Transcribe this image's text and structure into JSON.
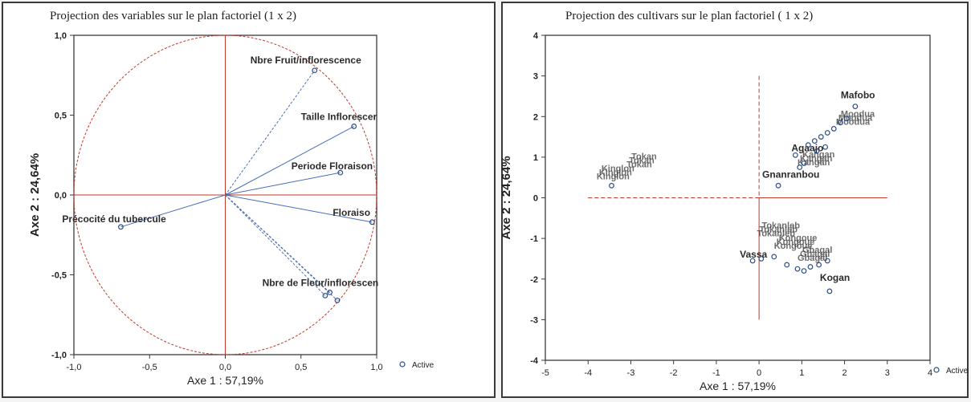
{
  "chart_data": [
    {
      "type": "scatter",
      "title": "Projection des variables sur le plan factoriel (1 x 2)",
      "xlabel": "Axe 1   : 57,19%",
      "ylabel": "Axe 2  : 24,64%",
      "xlim": [
        -1.0,
        1.0
      ],
      "ylim": [
        -1.0,
        1.0
      ],
      "xticks": [
        "-1,0",
        "-0,5",
        "0,0",
        "0,5",
        "1,0"
      ],
      "yticks": [
        "-1,0",
        "-0,5",
        "0,0",
        "0,5",
        "1,0"
      ],
      "legend": "Active",
      "legend_position": "right",
      "unit_circle": true,
      "points": [
        {
          "label": "Nbre Fruit/inflorescence",
          "x": 0.59,
          "y": 0.78
        },
        {
          "label": "Taille Inflorescer",
          "x": 0.85,
          "y": 0.43
        },
        {
          "label": "Periode Floraison",
          "x": 0.76,
          "y": 0.14
        },
        {
          "label": "Floraiso",
          "x": 0.97,
          "y": -0.17
        },
        {
          "label": "Précocité du tubercule",
          "x": -0.69,
          "y": -0.2
        },
        {
          "label": "Nbre de Fleur/inflorescen",
          "x": 0.69,
          "y": -0.61
        },
        {
          "label": "",
          "x": 0.74,
          "y": -0.66
        },
        {
          "label": "",
          "x": 0.66,
          "y": -0.63
        }
      ]
    },
    {
      "type": "scatter",
      "title": "Projection des cultivars sur le plan factoriel (  1 x   2)",
      "xlabel": "Axe 1 : 57,19%",
      "ylabel": "Axe 2 : 24,64%",
      "xlim": [
        -5,
        4
      ],
      "ylim": [
        -4,
        4
      ],
      "xticks": [
        "-5",
        "-4",
        "-3",
        "-2",
        "-1",
        "0",
        "1",
        "2",
        "3",
        "4"
      ],
      "yticks": [
        "-4",
        "-3",
        "-2",
        "-1",
        "0",
        "1",
        "2",
        "3",
        "4"
      ],
      "legend": "Active",
      "legend_position": "right",
      "points": [
        {
          "label": "Mafobo",
          "x": 2.25,
          "y": 2.25
        },
        {
          "label": "Gnanranbou",
          "x": 0.45,
          "y": 0.3
        },
        {
          "label": "Kogan",
          "x": 1.65,
          "y": -2.3
        },
        {
          "label": "Vassa",
          "x": -0.15,
          "y": -1.55
        },
        {
          "label": "Agaajo",
          "x": 0.85,
          "y": 1.05
        },
        {
          "label": "",
          "x": -3.45,
          "y": 0.3
        },
        {
          "label": "",
          "x": 2.05,
          "y": 1.95
        },
        {
          "label": "",
          "x": 1.9,
          "y": 1.85
        },
        {
          "label": "",
          "x": 1.75,
          "y": 1.7
        },
        {
          "label": "",
          "x": 1.6,
          "y": 1.6
        },
        {
          "label": "",
          "x": 1.45,
          "y": 1.5
        },
        {
          "label": "",
          "x": 1.3,
          "y": 1.4
        },
        {
          "label": "",
          "x": 1.15,
          "y": 1.3
        },
        {
          "label": "",
          "x": 1.05,
          "y": 0.85
        },
        {
          "label": "",
          "x": 0.95,
          "y": 0.75
        },
        {
          "label": "",
          "x": 1.35,
          "y": 1.15
        },
        {
          "label": "",
          "x": 1.55,
          "y": 1.25
        },
        {
          "label": "",
          "x": 0.05,
          "y": -1.5
        },
        {
          "label": "",
          "x": 0.35,
          "y": -1.45
        },
        {
          "label": "",
          "x": 0.65,
          "y": -1.65
        },
        {
          "label": "",
          "x": 0.9,
          "y": -1.75
        },
        {
          "label": "",
          "x": 1.2,
          "y": -1.7
        },
        {
          "label": "",
          "x": 1.4,
          "y": -1.65
        },
        {
          "label": "",
          "x": 1.6,
          "y": -1.55
        },
        {
          "label": "",
          "x": 1.05,
          "y": -1.8
        }
      ],
      "overlapping_label_clusters": [
        {
          "text": "Tokan",
          "x": -3.1,
          "y": 0.75
        },
        {
          "text": "Kinglon",
          "x": -3.8,
          "y": 0.45
        },
        {
          "text": "Kangan",
          "x": 0.9,
          "y": 0.8
        },
        {
          "text": "Moodua",
          "x": 1.8,
          "y": 1.8
        },
        {
          "text": "Tokanleb",
          "x": -0.05,
          "y": -0.95
        },
        {
          "text": "Kongoue",
          "x": 0.35,
          "y": -1.25
        },
        {
          "text": "Gbagal",
          "x": 0.9,
          "y": -1.55
        }
      ]
    }
  ]
}
